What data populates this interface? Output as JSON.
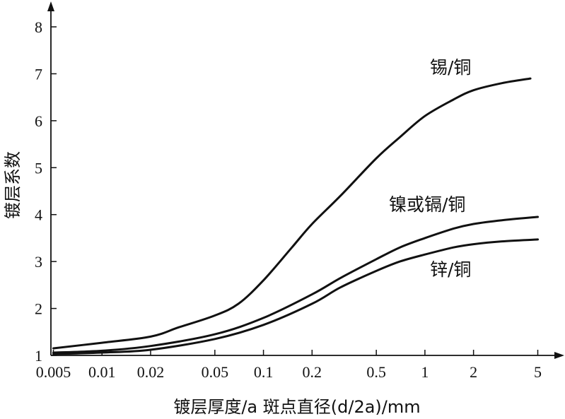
{
  "chart_data": {
    "type": "line",
    "xlabel": "镀层厚度/a 斑点直径(d/2a)/mm",
    "ylabel": "镀层系数",
    "x_scale": "log",
    "xlim": [
      0.005,
      6
    ],
    "ylim": [
      1,
      8
    ],
    "x_ticks": [
      0.005,
      0.01,
      0.02,
      0.05,
      0.1,
      0.2,
      0.5,
      1,
      2,
      5
    ],
    "x_tick_labels": [
      "0.005",
      "0.01",
      "0.02",
      "0.05",
      "0.1",
      "0.2",
      "0.5",
      "1",
      "2",
      "5"
    ],
    "y_ticks": [
      1,
      2,
      3,
      4,
      5,
      6,
      7,
      8
    ],
    "y_tick_labels": [
      "1",
      "2",
      "3",
      "4",
      "5",
      "6",
      "7",
      "8"
    ],
    "grid": false,
    "series": [
      {
        "name": "锡/铜",
        "x": [
          0.005,
          0.01,
          0.02,
          0.03,
          0.05,
          0.07,
          0.1,
          0.15,
          0.2,
          0.3,
          0.5,
          0.7,
          1,
          1.5,
          2,
          3,
          4.5
        ],
        "y": [
          1.15,
          1.27,
          1.4,
          1.6,
          1.85,
          2.1,
          2.6,
          3.3,
          3.8,
          4.4,
          5.2,
          5.65,
          6.1,
          6.45,
          6.65,
          6.8,
          6.9
        ]
      },
      {
        "name": "镍或镉/铜",
        "x": [
          0.005,
          0.01,
          0.02,
          0.05,
          0.1,
          0.2,
          0.3,
          0.5,
          0.7,
          1,
          1.5,
          2,
          3,
          5
        ],
        "y": [
          1.06,
          1.1,
          1.2,
          1.45,
          1.8,
          2.3,
          2.65,
          3.05,
          3.3,
          3.5,
          3.7,
          3.8,
          3.88,
          3.95
        ]
      },
      {
        "name": "锌/铜",
        "x": [
          0.005,
          0.01,
          0.02,
          0.05,
          0.1,
          0.2,
          0.3,
          0.5,
          0.7,
          1,
          1.5,
          2,
          3,
          5
        ],
        "y": [
          1.03,
          1.06,
          1.12,
          1.35,
          1.65,
          2.1,
          2.45,
          2.8,
          3.0,
          3.15,
          3.3,
          3.37,
          3.43,
          3.47
        ]
      }
    ]
  }
}
